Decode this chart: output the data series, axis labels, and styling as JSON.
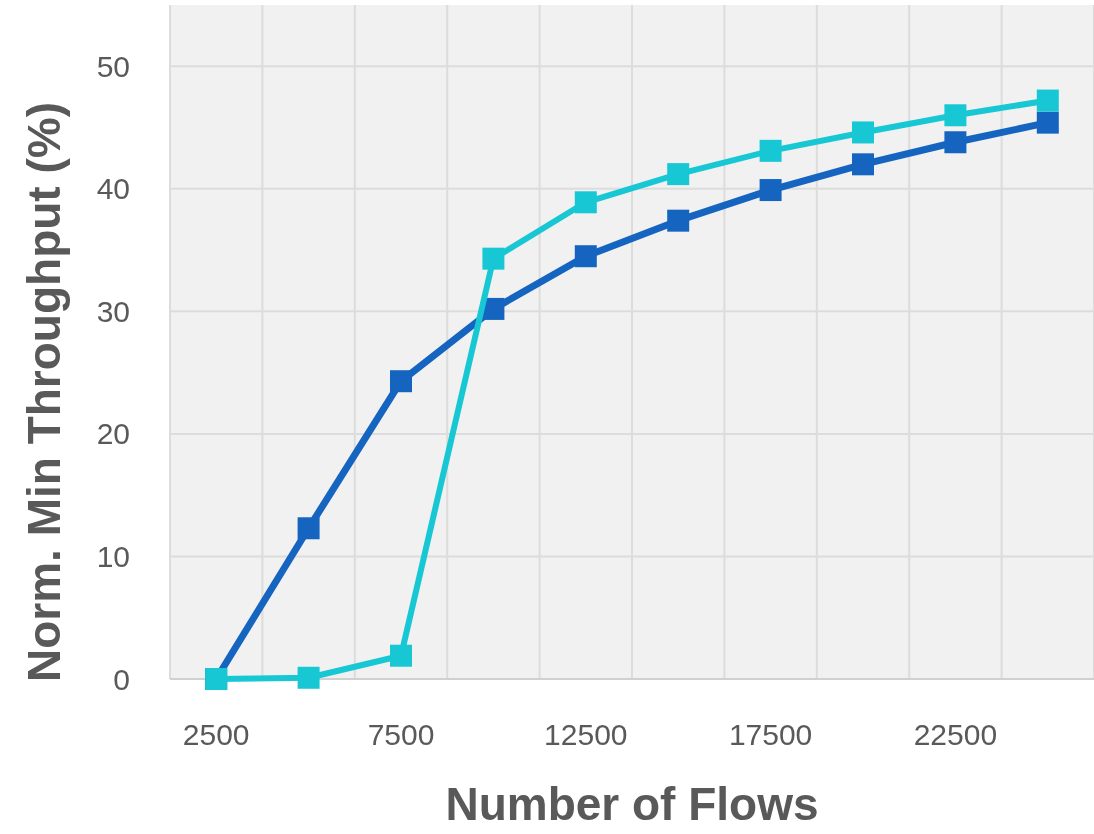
{
  "chart_data": {
    "type": "line",
    "xlabel": "Number of Flows",
    "ylabel": "Norm. Min Throughput (%)",
    "categories": [
      "2500",
      null,
      "7500",
      null,
      "12500",
      null,
      "17500",
      null,
      "22500",
      null
    ],
    "series": [
      {
        "color": "#1565c0",
        "values": [
          0,
          12.3,
          24.3,
          30.2,
          34.5,
          37.4,
          39.9,
          42,
          43.8,
          45.4
        ]
      },
      {
        "color": "#17c8d4",
        "values": [
          0,
          0.1,
          1.9,
          34.3,
          38.9,
          41.2,
          43.1,
          44.6,
          46,
          47.2
        ]
      }
    ],
    "ylim": [
      0,
      55
    ],
    "yticks": [
      0,
      10,
      20,
      30,
      40,
      50
    ],
    "grid": true,
    "marker": "square",
    "line_style": "solid"
  }
}
